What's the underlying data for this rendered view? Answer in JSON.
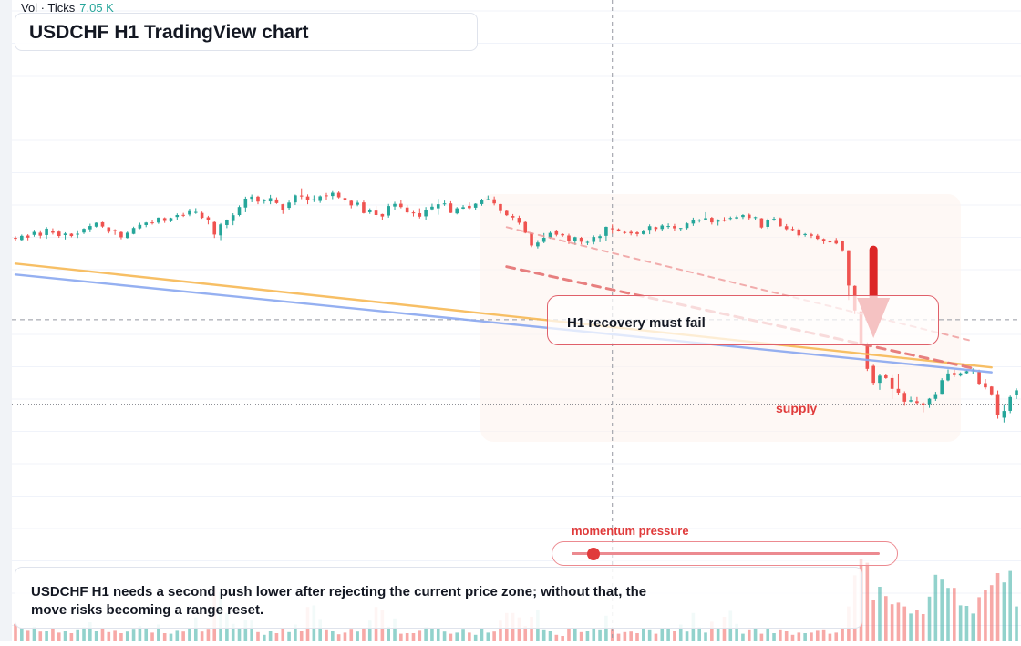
{
  "title": "USDCHF H1 TradingView chart",
  "volume_legend": {
    "label": "Vol · Ticks",
    "value": "7.05 K"
  },
  "callout": "H1 recovery must fail",
  "supply_label": "supply",
  "momentum": {
    "label": "momentum pressure",
    "level": 0.07
  },
  "note": "USDCHF H1 needs a second push lower after rejecting the current price zone; without that, the move risks becoming a range reset.",
  "colors": {
    "up": "#26a69a",
    "down": "#ef5350",
    "accent": "#e03b3b",
    "orange_line": "#f7b955",
    "blue_line": "#8aa8f0"
  },
  "chart_data": {
    "type": "candlestick",
    "symbol": "USDCHF",
    "timeframe": "H1",
    "price_range": [
      0,
      100
    ],
    "candles": [
      [
        66.1,
        67.0,
        64.2,
        65.5
      ],
      [
        64.8,
        68.1,
        64.1,
        67.3
      ],
      [
        67.5,
        68.3,
        64.6,
        66.2
      ],
      [
        67.9,
        71.0,
        66.8,
        69.7
      ],
      [
        69.2,
        70.7,
        65.8,
        67.4
      ],
      [
        67.8,
        72.7,
        65.5,
        71.7
      ],
      [
        70.5,
        71.9,
        68.1,
        69.2
      ],
      [
        69.9,
        70.8,
        66.1,
        67.2
      ],
      [
        67.8,
        69.5,
        65.1,
        68.7
      ],
      [
        68.6,
        68.9,
        66.4,
        67.2
      ],
      [
        68.5,
        70.7,
        66.0,
        68.6
      ],
      [
        69.3,
        72.0,
        68.4,
        71.6
      ],
      [
        71.3,
        74.7,
        69.5,
        73.3
      ],
      [
        72.9,
        75.5,
        72.4,
        75.3
      ],
      [
        75.6,
        75.9,
        72.3,
        73.0
      ],
      [
        72.5,
        72.6,
        68.8,
        69.8
      ],
      [
        70.8,
        71.4,
        67.9,
        70.2
      ],
      [
        69.6,
        70.2,
        65.2,
        66.4
      ],
      [
        66.0,
        69.9,
        65.7,
        69.2
      ],
      [
        68.5,
        72.9,
        68.2,
        72.1
      ],
      [
        71.9,
        75.3,
        71.4,
        74.0
      ],
      [
        73.9,
        75.7,
        72.6,
        75.4
      ],
      [
        75.5,
        76.7,
        74.2,
        75.3
      ],
      [
        75.4,
        78.5,
        74.6,
        78.4
      ],
      [
        78.1,
        78.6,
        75.2,
        76.4
      ],
      [
        76.2,
        78.4,
        75.6,
        78.1
      ],
      [
        78.8,
        81.0,
        76.7,
        80.0
      ],
      [
        80.1,
        81.3,
        78.8,
        79.8
      ],
      [
        80.3,
        83.9,
        79.3,
        82.4
      ],
      [
        81.6,
        84.2,
        80.7,
        81.9
      ],
      [
        81.3,
        82.1,
        77.7,
        78.3
      ],
      [
        78.6,
        79.5,
        74.3,
        77.1
      ],
      [
        75.7,
        76.1,
        66.0,
        68.1
      ],
      [
        67.6,
        75.1,
        64.7,
        74.3
      ],
      [
        73.9,
        77.3,
        72.0,
        76.7
      ],
      [
        76.3,
        81.1,
        73.8,
        79.9
      ],
      [
        80.0,
        85.9,
        79.2,
        84.9
      ],
      [
        84.6,
        91.2,
        81.7,
        90.0
      ],
      [
        89.9,
        92.5,
        87.8,
        91.2
      ],
      [
        91.2,
        91.8,
        86.6,
        88.2
      ],
      [
        88.8,
        89.8,
        86.9,
        89.0
      ],
      [
        88.3,
        92.3,
        86.6,
        90.3
      ],
      [
        89.5,
        90.8,
        86.8,
        87.3
      ],
      [
        86.6,
        86.8,
        80.7,
        83.3
      ],
      [
        84.4,
        88.8,
        82.8,
        87.6
      ],
      [
        87.7,
        92.5,
        86.1,
        92.0
      ],
      [
        91.9,
        96.3,
        89.7,
        91.3
      ],
      [
        91.3,
        92.6,
        86.6,
        89.4
      ],
      [
        89.4,
        92.0,
        87.9,
        89.6
      ],
      [
        88.6,
        92.0,
        87.4,
        91.4
      ],
      [
        92.0,
        93.5,
        89.1,
        91.7
      ],
      [
        91.6,
        94.6,
        89.7,
        93.6
      ],
      [
        93.6,
        94.4,
        90.1,
        90.8
      ],
      [
        90.4,
        91.5,
        87.6,
        89.4
      ],
      [
        88.7,
        89.3,
        84.1,
        85.9
      ],
      [
        86.3,
        88.7,
        85.4,
        87.5
      ],
      [
        87.7,
        88.8,
        80.9,
        81.2
      ],
      [
        81.7,
        84.1,
        80.7,
        83.3
      ],
      [
        82.7,
        85.6,
        78.8,
        80.0
      ],
      [
        80.6,
        80.8,
        77.2,
        79.1
      ],
      [
        79.7,
        86.8,
        78.4,
        85.5
      ],
      [
        85.2,
        88.1,
        83.3,
        86.8
      ],
      [
        86.9,
        89.2,
        84.1,
        84.9
      ],
      [
        84.6,
        86.0,
        80.8,
        81.6
      ],
      [
        81.6,
        82.5,
        79.1,
        81.1
      ],
      [
        81.1,
        84.1,
        77.9,
        79.0
      ],
      [
        79.2,
        84.9,
        77.2,
        83.1
      ],
      [
        83.5,
        86.9,
        82.7,
        85.1
      ],
      [
        84.1,
        89.9,
        80.2,
        86.6
      ],
      [
        86.9,
        88.8,
        85.6,
        87.1
      ],
      [
        87.1,
        88.4,
        81.2,
        81.3
      ],
      [
        81.0,
        84.9,
        80.4,
        84.1
      ],
      [
        83.9,
        86.1,
        83.7,
        84.8
      ],
      [
        85.6,
        87.7,
        83.5,
        84.2
      ],
      [
        84.5,
        87.2,
        82.9,
        86.9
      ],
      [
        86.7,
        90.0,
        85.7,
        89.2
      ],
      [
        89.1,
        91.9,
        88.9,
        89.7
      ],
      [
        89.6,
        91.3,
        85.9,
        87.1
      ],
      [
        86.7,
        86.8,
        80.9,
        82.4
      ],
      [
        82.5,
        82.8,
        79.4,
        79.9
      ],
      [
        79.4,
        80.6,
        76.5,
        78.5
      ],
      [
        78.3,
        79.6,
        74.1,
        75.3
      ],
      [
        75.7,
        76.1,
        68.8,
        69.2
      ],
      [
        69.1,
        69.2,
        60.4,
        61.4
      ],
      [
        60.9,
        64.7,
        59.6,
        63.2
      ],
      [
        63.6,
        69.0,
        62.8,
        66.1
      ],
      [
        66.2,
        69.9,
        65.5,
        69.1
      ],
      [
        70.6,
        71.1,
        67.0,
        68.0
      ],
      [
        68.4,
        68.8,
        66.7,
        67.6
      ],
      [
        67.5,
        68.6,
        62.3,
        63.9
      ],
      [
        63.9,
        66.8,
        61.8,
        66.5
      ],
      [
        66.1,
        66.7,
        62.1,
        63.7
      ],
      [
        63.1,
        64.6,
        61.7,
        63.6
      ],
      [
        63.6,
        67.6,
        62.1,
        66.6
      ],
      [
        66.0,
        68.1,
        63.4,
        67.1
      ],
      [
        67.3,
        73.0,
        63.9,
        72.8
      ],
      [
        71.9,
        74.3,
        68.7,
        71.4
      ],
      [
        71.3,
        71.9,
        69.9,
        70.3
      ],
      [
        69.6,
        70.6,
        68.5,
        69.5
      ],
      [
        69.7,
        71.0,
        67.6,
        68.8
      ],
      [
        69.4,
        70.0,
        67.0,
        68.4
      ],
      [
        68.4,
        71.1,
        68.0,
        70.1
      ],
      [
        71.0,
        74.3,
        68.3,
        73.2
      ],
      [
        72.6,
        72.9,
        69.8,
        71.5
      ],
      [
        71.5,
        74.4,
        70.4,
        73.6
      ],
      [
        73.0,
        74.9,
        71.7,
        73.3
      ],
      [
        73.3,
        74.6,
        70.2,
        71.9
      ],
      [
        72.1,
        72.2,
        70.4,
        72.1
      ],
      [
        72.1,
        75.4,
        71.2,
        74.9
      ],
      [
        74.8,
        78.4,
        73.4,
        77.2
      ],
      [
        76.9,
        77.6,
        75.4,
        77.1
      ],
      [
        77.1,
        81.7,
        76.7,
        78.1
      ],
      [
        78.3,
        78.9,
        74.2,
        75.5
      ],
      [
        75.9,
        77.4,
        73.6,
        76.6
      ],
      [
        77.0,
        78.7,
        75.9,
        76.9
      ],
      [
        77.7,
        79.1,
        76.5,
        78.2
      ],
      [
        77.9,
        79.7,
        77.6,
        78.7
      ],
      [
        78.8,
        80.5,
        77.6,
        80.0
      ],
      [
        80.2,
        80.9,
        77.0,
        78.2
      ],
      [
        78.2,
        79.1,
        77.2,
        78.7
      ],
      [
        78.0,
        78.2,
        71.8,
        72.4
      ],
      [
        72.8,
        77.9,
        71.6,
        77.2
      ],
      [
        77.4,
        78.9,
        76.4,
        77.7
      ],
      [
        78.0,
        78.5,
        72.9,
        73.2
      ],
      [
        73.2,
        74.5,
        70.8,
        71.4
      ],
      [
        71.5,
        73.0,
        70.2,
        70.9
      ],
      [
        71.2,
        72.0,
        66.4,
        67.6
      ],
      [
        67.8,
        69.0,
        66.8,
        68.4
      ],
      [
        68.2,
        69.0,
        66.0,
        67.3
      ],
      [
        67.4,
        68.4,
        64.9,
        65.5
      ],
      [
        65.4,
        65.8,
        62.3,
        64.4
      ],
      [
        64.3,
        64.8,
        62.8,
        63.3
      ],
      [
        64.7,
        66.0,
        62.1,
        62.6
      ],
      [
        64.4,
        64.5,
        57.5,
        58.5
      ],
      [
        58.5,
        58.6,
        28.2,
        37.0
      ],
      [
        36.8,
        37.1,
        19.6,
        21.8
      ],
      [
        21.3,
        22.3,
        0.6,
        1.7
      ],
      [
        1.5,
        2.4,
        -15.1,
        -13.8
      ],
      [
        -12.0,
        -11.3,
        -23.4,
        -22.3
      ],
      [
        -22.3,
        -16.7,
        -26.6,
        -18.0
      ],
      [
        -17.8,
        -16.8,
        -19.9,
        -19.4
      ],
      [
        -19.4,
        -17.6,
        -32.1,
        -26.0
      ],
      [
        -26.0,
        -17.1,
        -29.8,
        -28.3
      ],
      [
        -28.5,
        -27.5,
        -36.3,
        -33.8
      ],
      [
        -33.7,
        -30.8,
        -34.1,
        -32.9
      ],
      [
        -33.5,
        -31.0,
        -35.3,
        -34.6
      ],
      [
        -34.8,
        -34.0,
        -40.3,
        -35.6
      ],
      [
        -35.2,
        -31.6,
        -37.6,
        -32.0
      ],
      [
        -32.1,
        -27.8,
        -33.3,
        -29.2
      ],
      [
        -29.0,
        -19.5,
        -29.1,
        -20.7
      ],
      [
        -20.8,
        -14.2,
        -21.3,
        -16.6
      ],
      [
        -16.3,
        -14.3,
        -18.8,
        -17.6
      ],
      [
        -17.9,
        -15.9,
        -18.5,
        -16.5
      ],
      [
        -16.4,
        -14.5,
        -16.8,
        -15.2
      ],
      [
        -14.7,
        -13.5,
        -17.0,
        -14.7
      ],
      [
        -15.6,
        -14.3,
        -23.8,
        -22.8
      ],
      [
        -22.5,
        -20.0,
        -26.3,
        -25.1
      ],
      [
        -24.6,
        -24.4,
        -30.2,
        -29.3
      ],
      [
        -29.2,
        -27.0,
        -44.2,
        -42.1
      ],
      [
        -43.6,
        -35.3,
        -46.5,
        -39.5
      ],
      [
        -39.4,
        -30.1,
        -40.8,
        -31.0
      ],
      [
        -29.5,
        -25.7,
        -32.2,
        -26.9
      ],
      [
        -26.8,
        -23.6,
        -28.2,
        -26.3
      ]
    ],
    "volumes": [
      3.2,
      2.5,
      2.1,
      2.7,
      1.8,
      1.9,
      2.4,
      1.6,
      2.0,
      1.5,
      2.2,
      2.6,
      3.5,
      2.0,
      2.4,
      1.7,
      2.1,
      1.5,
      1.8,
      2.3,
      2.8,
      2.5,
      1.6,
      3.1,
      1.5,
      1.4,
      2.1,
      1.8,
      2.5,
      4.4,
      1.8,
      2.3,
      9.8,
      9.0,
      5.2,
      3.2,
      2.4,
      3.9,
      3.8,
      1.7,
      1.2,
      2.0,
      1.5,
      2.4,
      1.7,
      3.1,
      1.9,
      6.3,
      6.6,
      4.1,
      2.2,
      1.9,
      1.3,
      1.6,
      2.3,
      1.8,
      2.5,
      3.8,
      6.3,
      5.7,
      2.7,
      4.2,
      1.4,
      1.5,
      1.5,
      2.1,
      2.6,
      2.4,
      2.4,
      1.8,
      1.4,
      1.6,
      2.3,
      1.6,
      1.2,
      2.4,
      1.6,
      1.8,
      3.8,
      5.2,
      5.2,
      4.4,
      2.8,
      4.5,
      5.7,
      2.2,
      1.9,
      1.2,
      1.0,
      2.4,
      2.5,
      1.7,
      1.9,
      2.5,
      2.2,
      4.7,
      2.3,
      1.4,
      1.7,
      1.8,
      1.5,
      2.4,
      2.2,
      1.4,
      2.4,
      2.4,
      1.9,
      3.1,
      1.8,
      5.2,
      2.6,
      1.6,
      3.6,
      2.5,
      4.5,
      5.6,
      3.2,
      1.4,
      2.2,
      2.4,
      1.4,
      2.4,
      1.5,
      2.2,
      1.9,
      1.2,
      1.6,
      1.5,
      1.6,
      2.1,
      2.2,
      1.4,
      1.6,
      2.5,
      6.4,
      12.1,
      15.0,
      14.4,
      7.6,
      10.0,
      8.3,
      6.8,
      7.1,
      6.4,
      5.1,
      5.7,
      5.0,
      8.2,
      12.2,
      11.3,
      9.8,
      9.8,
      6.6,
      6.5,
      5.1,
      8.1,
      9.4,
      10.3,
      12.5,
      10.8,
      12.9,
      6.4
    ],
    "lines": [
      {
        "name": "orange",
        "from": [
          0,
          50.4
        ],
        "to": [
          157,
          -12.9
        ]
      },
      {
        "name": "blue",
        "from": [
          0,
          43.7
        ],
        "to": [
          157,
          -15.9
        ]
      },
      {
        "name": "red-dashed",
        "from": [
          79,
          48.5
        ],
        "to": [
          154,
          -13.4
        ]
      },
      {
        "name": "pink-dashed",
        "from": [
          79,
          72.6
        ],
        "to": [
          154,
          3.1
        ]
      }
    ],
    "reference_levels": [
      16.2,
      -35.5
    ],
    "crosshair_bar": 96,
    "arrow": {
      "from": [
        138,
        58.8
      ],
      "to": [
        138,
        5.0
      ]
    }
  }
}
